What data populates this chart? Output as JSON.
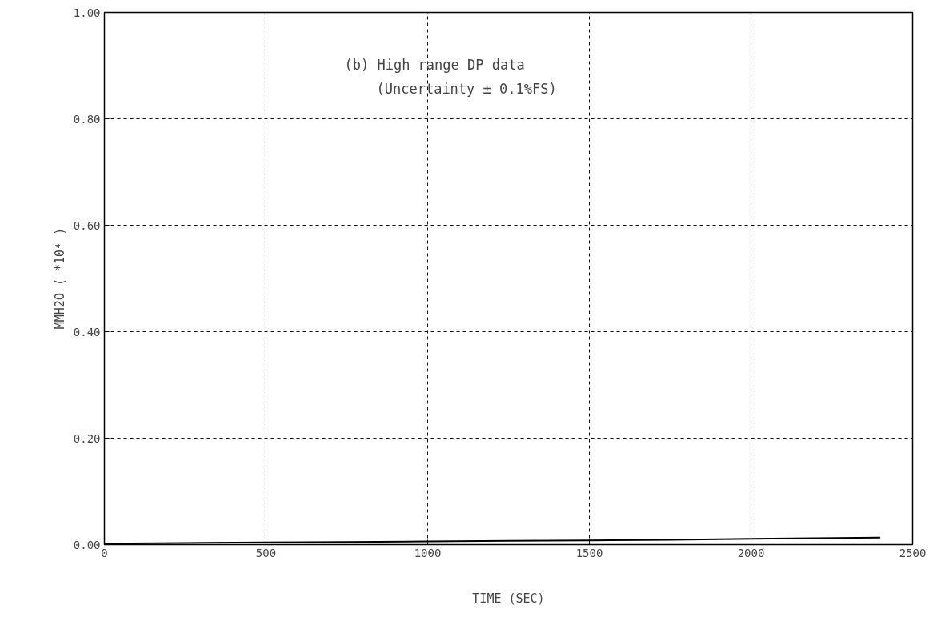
{
  "chart_data": {
    "type": "line",
    "xlabel": "TIME (SEC)",
    "ylabel": "MMH2O ( *10⁴ )",
    "annotations": [
      "(b) High range DP data",
      "(Uncertainty ± 0.1%FS)"
    ],
    "x": [
      0,
      250,
      500,
      750,
      1000,
      1250,
      1500,
      1750,
      2000,
      2200,
      2400
    ],
    "series": [
      {
        "color": "#000000",
        "values": [
          0.002,
          0.003,
          0.004,
          0.005,
          0.006,
          0.007,
          0.008,
          0.009,
          0.011,
          0.012,
          0.013
        ]
      }
    ],
    "xlim": [
      0,
      2500
    ],
    "xticks": [
      0,
      500,
      1000,
      1500,
      2000,
      2500
    ],
    "ylim": [
      0,
      1
    ],
    "yticks": [
      {
        "value": 0,
        "label": "0.00"
      },
      {
        "value": 0.2,
        "label": "0.20"
      },
      {
        "value": 0.4,
        "label": "0.40"
      },
      {
        "value": 0.6,
        "label": "0.60"
      },
      {
        "value": 0.8,
        "label": "0.80"
      },
      {
        "value": 1,
        "label": "1.00"
      }
    ],
    "grid": true,
    "line_style": "solid"
  }
}
